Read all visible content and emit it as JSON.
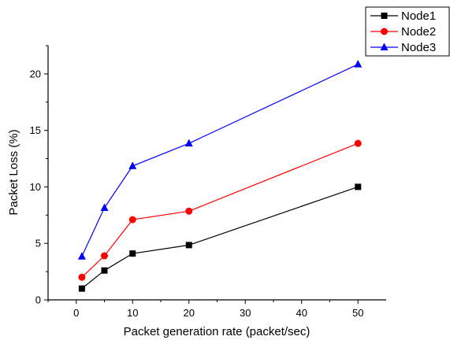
{
  "chart_data": {
    "type": "line",
    "title": "",
    "xlabel": "Packet generation rate (packet/sec)",
    "ylabel": "Packet Loss (%)",
    "x": [
      1,
      5,
      10,
      20,
      50
    ],
    "xlim": [
      -5,
      55
    ],
    "ylim": [
      0,
      22.5
    ],
    "x_ticks": [
      "0",
      "10",
      "20",
      "30",
      "40",
      "50"
    ],
    "y_ticks": [
      "0",
      "5",
      "10",
      "15",
      "20"
    ],
    "grid": false,
    "legend_position": "top-right",
    "series": [
      {
        "name": "Node1",
        "color": "#000000",
        "marker": "square",
        "values": [
          1.0,
          2.6,
          4.1,
          4.85,
          10.0
        ]
      },
      {
        "name": "Node2",
        "color": "#ff0000",
        "marker": "circle",
        "values": [
          2.0,
          3.9,
          7.1,
          7.85,
          13.85
        ]
      },
      {
        "name": "Node3",
        "color": "#0000ff",
        "marker": "triangle",
        "values": [
          3.85,
          8.15,
          11.85,
          13.85,
          20.85
        ]
      }
    ]
  }
}
